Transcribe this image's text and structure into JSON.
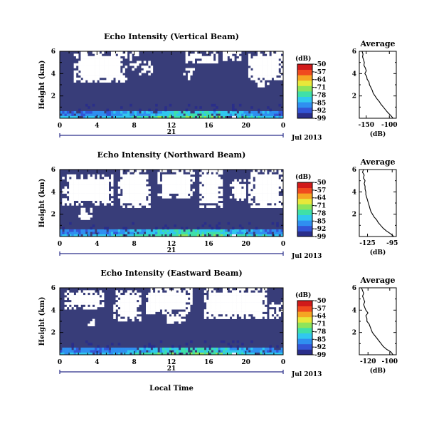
{
  "figure": {
    "xlabel": "Local Time",
    "month_label": "Jul 2013",
    "day_label": "21"
  },
  "colors": {
    "background_fill": "#383d79",
    "gap_fill": "#ffffff",
    "colormap": [
      "#2a2e8a",
      "#3355d6",
      "#2f8ff0",
      "#31c8ef",
      "#3fe0a8",
      "#8ee45a",
      "#e8e83a",
      "#f5a623",
      "#f04a1e",
      "#d11a1a"
    ]
  },
  "chart_data": [
    {
      "type": "heatmap",
      "title": "Echo Intensity (Vertical Beam)",
      "ylabel": "Height (km)",
      "x_ticks": [
        "0",
        "4",
        "8",
        "12",
        "16",
        "20",
        "0"
      ],
      "xlim": [
        0,
        24
      ],
      "y_ticks": [
        "6",
        "4",
        "2"
      ],
      "ylim": [
        0,
        6
      ],
      "colorbar": {
        "label": "(dB)",
        "ticks": [
          "-50",
          "-57",
          "-64",
          "-71",
          "-78",
          "-85",
          "-92",
          "-99"
        ],
        "range": [
          -99,
          -50
        ]
      },
      "profile": {
        "title": "Average",
        "xlabel": "(dB)",
        "x_ticks": [
          "-150",
          "-100"
        ],
        "xlim": [
          -165,
          -85
        ],
        "y_ticks": [
          "6",
          "4",
          "2"
        ],
        "ylim": [
          0,
          6
        ],
        "height_km": [
          0.0,
          0.25,
          0.5,
          0.75,
          1.0,
          1.25,
          1.5,
          1.75,
          2.0,
          2.25,
          2.5,
          2.75,
          3.0,
          3.25,
          3.5,
          3.75,
          4.0,
          4.25,
          4.5,
          4.75,
          5.0,
          5.25,
          5.5,
          5.75,
          6.0
        ],
        "mean_db": [
          -92,
          -97,
          -103,
          -108,
          -113,
          -118,
          -122,
          -127,
          -131,
          -135,
          -137,
          -140,
          -143,
          -144,
          -148,
          -149,
          -153,
          -150,
          -152,
          -155,
          -154,
          -156,
          -158,
          -157,
          -159
        ]
      }
    },
    {
      "type": "heatmap",
      "title": "Echo Intensity (Northward Beam)",
      "ylabel": "Height (km)",
      "x_ticks": [
        "0",
        "4",
        "8",
        "12",
        "16",
        "20",
        "0"
      ],
      "xlim": [
        0,
        24
      ],
      "y_ticks": [
        "6",
        "4",
        "2"
      ],
      "ylim": [
        0,
        6
      ],
      "colorbar": {
        "label": "(dB)",
        "ticks": [
          "-50",
          "-57",
          "-64",
          "-71",
          "-78",
          "-85",
          "-92",
          "-99"
        ],
        "range": [
          -99,
          -50
        ]
      },
      "profile": {
        "title": "Average",
        "xlabel": "(dB)",
        "x_ticks": [
          "-125",
          "-95"
        ],
        "xlim": [
          -135,
          -90
        ],
        "y_ticks": [
          "6",
          "4",
          "2"
        ],
        "ylim": [
          0,
          6
        ],
        "height_km": [
          0.0,
          0.25,
          0.5,
          0.75,
          1.0,
          1.25,
          1.5,
          1.75,
          2.0,
          2.25,
          2.5,
          2.75,
          3.0,
          3.25,
          3.5,
          3.75,
          4.0,
          4.25,
          4.5,
          4.75,
          5.0,
          5.25,
          5.5,
          5.75,
          6.0
        ],
        "mean_db": [
          -93,
          -97,
          -102,
          -106,
          -109,
          -112,
          -114,
          -117,
          -119,
          -121,
          -122,
          -123,
          -124,
          -125,
          -126,
          -127,
          -127,
          -128,
          -128,
          -129,
          -128,
          -130,
          -129,
          -131,
          -130
        ]
      }
    },
    {
      "type": "heatmap",
      "title": "Echo Intensity (Eastward Beam)",
      "ylabel": "Height (km)",
      "x_ticks": [
        "0",
        "4",
        "8",
        "12",
        "16",
        "20",
        "0"
      ],
      "xlim": [
        0,
        24
      ],
      "y_ticks": [
        "6",
        "4",
        "2"
      ],
      "ylim": [
        0,
        6
      ],
      "colorbar": {
        "label": "(dB)",
        "ticks": [
          "-50",
          "-57",
          "-64",
          "-71",
          "-78",
          "-85",
          "-92",
          "-99"
        ],
        "range": [
          -99,
          -50
        ]
      },
      "profile": {
        "title": "Average",
        "xlabel": "(dB)",
        "x_ticks": [
          "-120",
          "-100"
        ],
        "xlim": [
          -128,
          -94
        ],
        "y_ticks": [
          "6",
          "4",
          "2"
        ],
        "ylim": [
          0,
          6
        ],
        "height_km": [
          0.0,
          0.25,
          0.5,
          0.75,
          1.0,
          1.25,
          1.5,
          1.75,
          2.0,
          2.25,
          2.5,
          2.75,
          3.0,
          3.25,
          3.5,
          3.75,
          4.0,
          4.25,
          4.5,
          4.75,
          5.0,
          5.25,
          5.5,
          5.75,
          6.0
        ],
        "mean_db": [
          -97,
          -99,
          -103,
          -106,
          -108,
          -110,
          -112,
          -114,
          -116,
          -117,
          -118,
          -119,
          -121,
          -121,
          -122,
          -120,
          -122,
          -123,
          -124,
          -123,
          -124,
          -125,
          -124,
          -125,
          -126
        ]
      }
    }
  ]
}
